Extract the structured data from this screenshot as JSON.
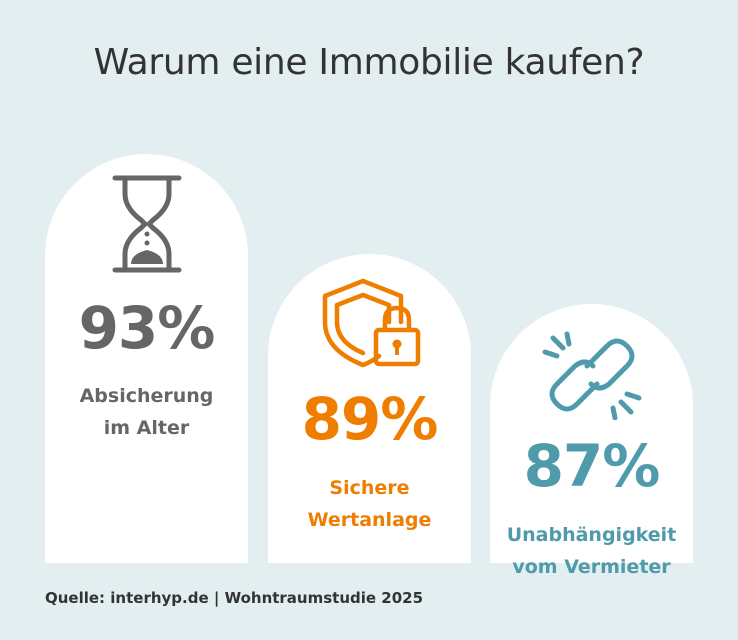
{
  "title": "Warum eine Immobilie kaufen?",
  "source": "Quelle: interhyp.de | Wohntraumstudie 2025",
  "colors": {
    "background": "#e2eef0",
    "card": "#ffffff",
    "gray": "#666666",
    "orange": "#ee7d00",
    "teal": "#4f9aab"
  },
  "chart_data": {
    "type": "bar",
    "unit": "%",
    "categories": [
      "Absicherung im Alter",
      "Sichere Wertanlage",
      "Unabhängigkeit vom Vermieter"
    ],
    "values": [
      93,
      89,
      87
    ],
    "value_labels": [
      "93%",
      "89%",
      "87%"
    ],
    "label_lines": [
      [
        "Absicherung",
        "im Alter"
      ],
      [
        "Sichere",
        "Wertanlage"
      ],
      [
        "Unabhängigkeit",
        "vom Vermieter"
      ]
    ],
    "icons": [
      "hourglass-icon",
      "shield-lock-icon",
      "broken-link-icon"
    ],
    "colors": [
      "#666666",
      "#ee7d00",
      "#4f9aab"
    ]
  }
}
